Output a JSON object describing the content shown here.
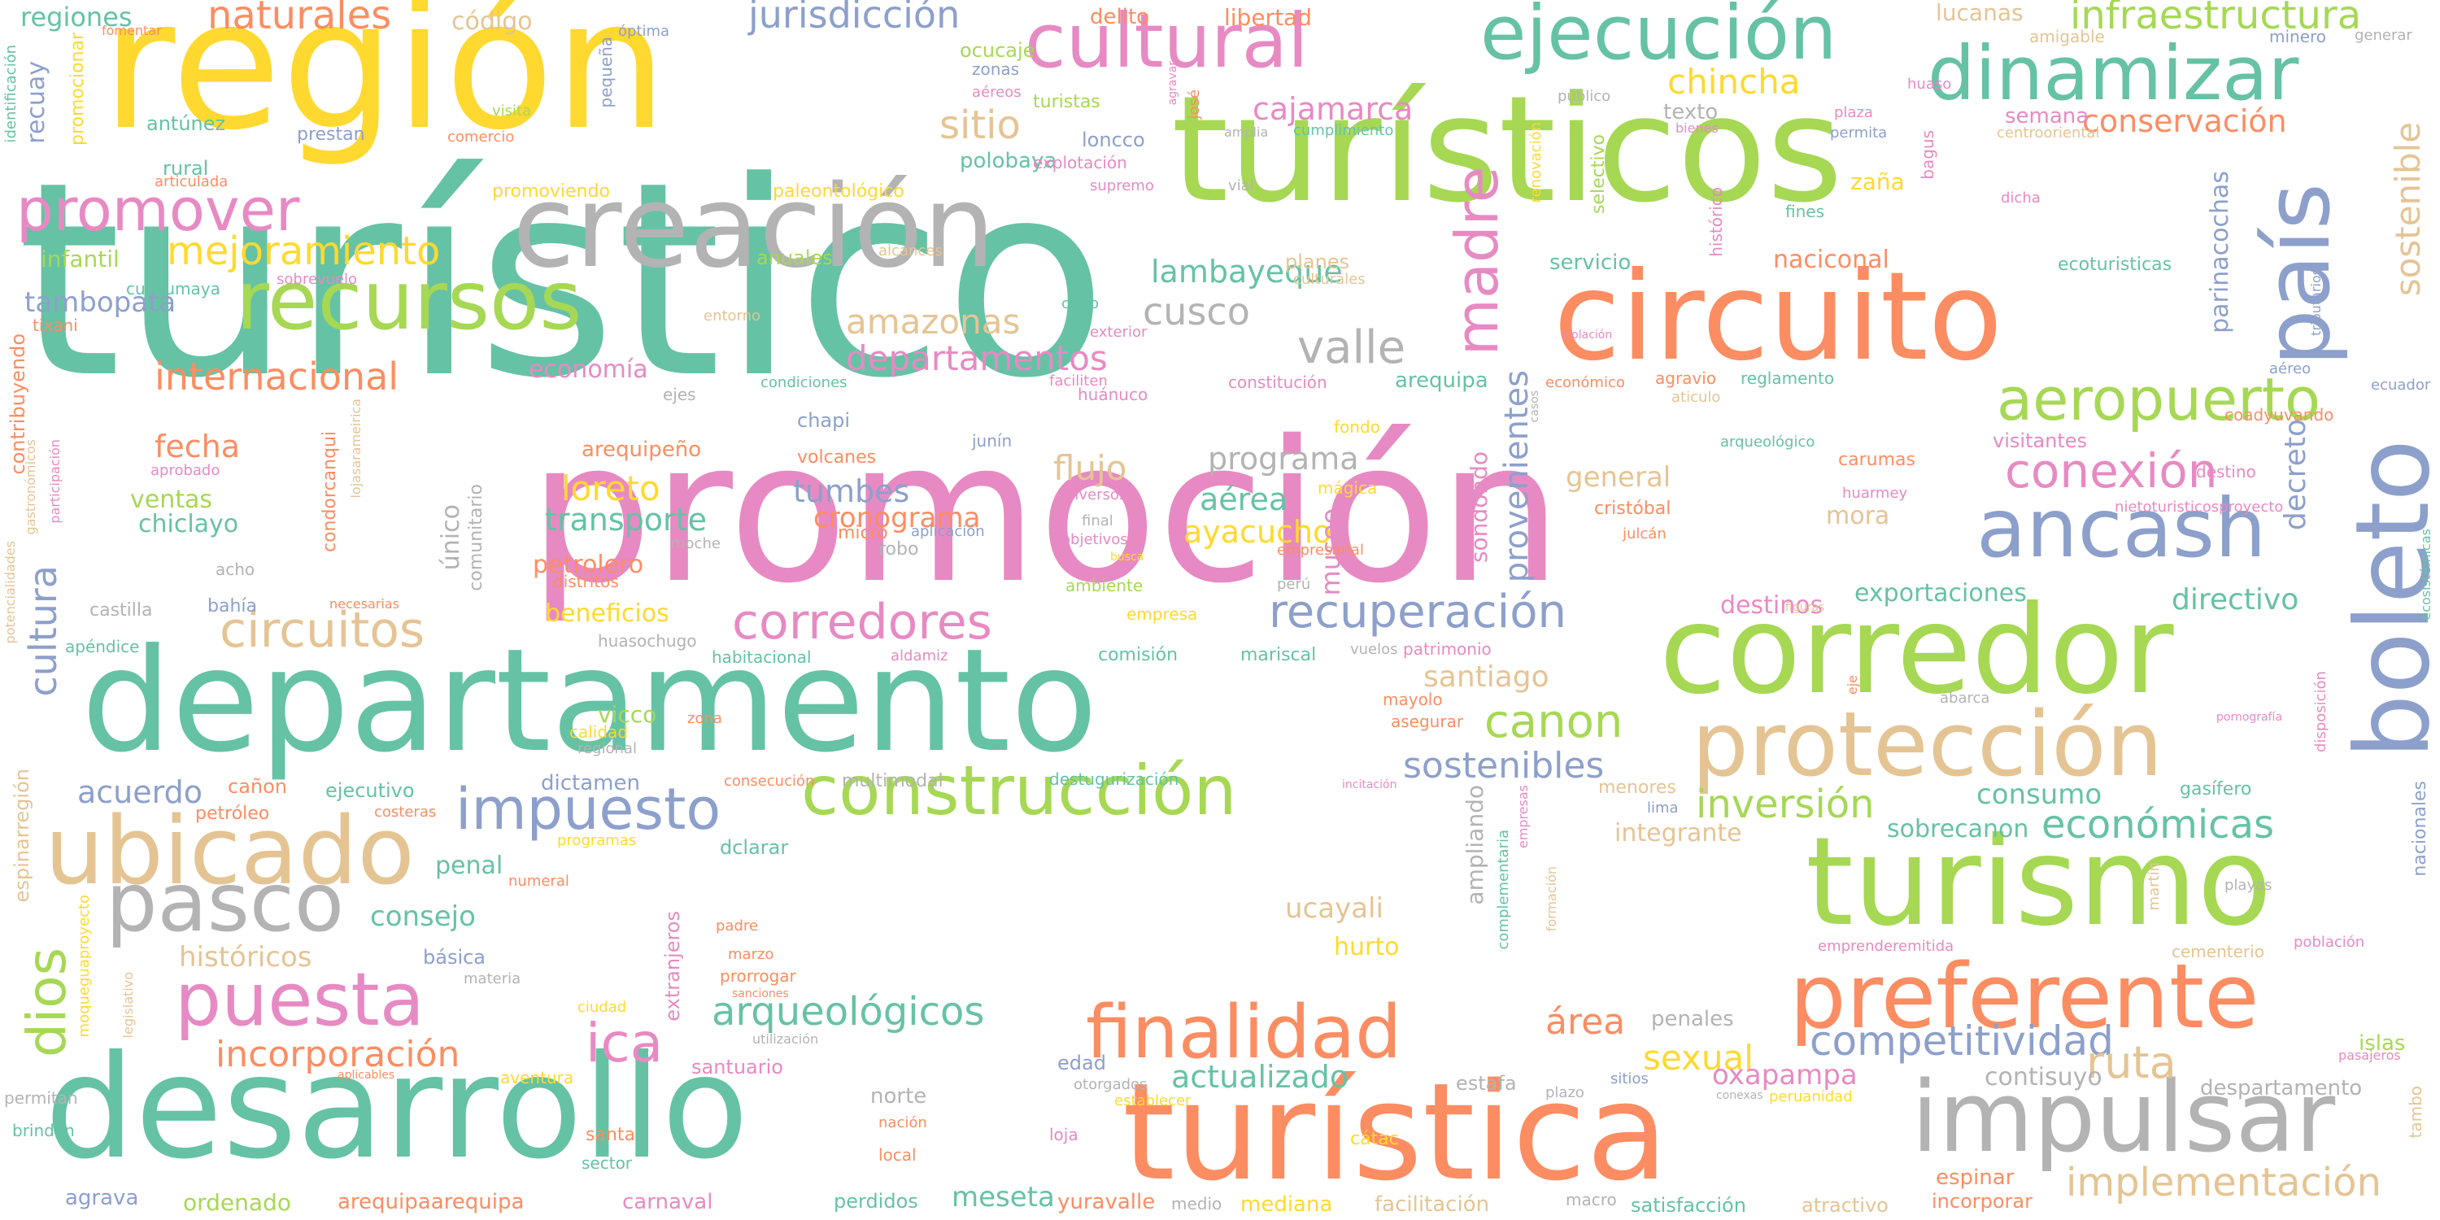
{
  "colors": {
    "teal": "#66c2a5",
    "orange": "#fc8d62",
    "blue": "#8da0cb",
    "pink": "#e78ac3",
    "lime": "#a6d854",
    "yellow": "#ffd92f",
    "tan": "#e5c494",
    "gray": "#b3b3b3"
  },
  "words": {
    "turistico": "turístico",
    "promocion": "promoción",
    "region": "región",
    "turisticos": "turísticos",
    "departamento": "departamento",
    "desarrollo": "desarrollo",
    "turistica": "turística",
    "creacion": "creación",
    "circuito": "circuito",
    "corredor": "corredor",
    "turismo": "turismo",
    "preferente": "preferente",
    "impulsar": "impulsar",
    "boleto": "boleto",
    "pais": "país",
    "proteccion": "protección",
    "ancash": "ancash",
    "ubicado": "ubicado",
    "pasco": "pasco",
    "cultural": "cultural",
    "ejecucion": "ejecución",
    "dinamizar": "dinamizar",
    "recursos": "recursos",
    "construccion": "construcción",
    "finalidad": "finalidad",
    "puesta": "puesta",
    "promover": "promover",
    "aeropuerto": "aeropuerto",
    "impuesto": "impuesto",
    "madre": "madre",
    "circuitos": "circuitos",
    "corredores": "corredores",
    "conexion": "conexión",
    "recuperacion": "recuperación",
    "competitividad": "competitividad",
    "implementacion": "implementación",
    "naturales": "naturales",
    "jurisdiccion": "jurisdicción",
    "infraestructura": "infraestructura",
    "mejoramiento": "mejoramiento",
    "internacional": "internacional",
    "arqueologicos": "arqueológicos",
    "incorporacion": "incorporación",
    "actualizado": "actualizado",
    "canon": "canon",
    "inversion": "inversión",
    "economicas": "económicas",
    "ruta": "ruta",
    "sexual": "sexual",
    "oxapampa": "oxapampa",
    "ica": "ica",
    "dios": "dios",
    "cultura": "cultura",
    "sostenibles": "sostenibles",
    "valle": "valle",
    "cusco": "cusco",
    "amazonas": "amazonas",
    "departamentos": "departamentos",
    "sitio": "sitio",
    "chincha": "chincha",
    "lambayeque": "lambayeque",
    "cajamarca": "cajamarca",
    "loreto": "loreto",
    "tumbes": "tumbes",
    "transporte": "transporte",
    "programa": "programa",
    "flujo": "flujo",
    "aerea": "aérea",
    "ayacucho": "ayacucho",
    "fecha": "fecha",
    "ventas": "ventas",
    "chiclayo": "chiclayo",
    "tambopata": "tambopata",
    "cronograma": "cronograma",
    "santiago": "santiago",
    "beneficios": "beneficios",
    "petrolero": "petrolero",
    "acuerdo": "acuerdo",
    "consejo": "consejo",
    "historicos": "históricos",
    "museo": "museo",
    "provenientes": "provenientes",
    "sostenible": "sostenible",
    "decreto": "decreto",
    "parinacochas": "parinacochas",
    "directivo": "directivo",
    "exportaciones": "exportaciones",
    "destinos": "destinos",
    "conservacion": "conservación",
    "naciconal": "naciconal",
    "general": "general",
    "mora": "mora",
    "consumo": "consumo",
    "sobrecanon": "sobrecanon",
    "integrante": "integrante",
    "arequipa": "arequipa",
    "economia": "economía",
    "ucayali": "ucayali",
    "hurto": "hurto",
    "area": "área",
    "penales": "penales",
    "contisuyo": "contisuyo",
    "despartamento": "despartamento",
    "islas": "islas",
    "espinar": "espinar",
    "incorporar": "incorporar",
    "satisfaccion": "satisfacción",
    "atractivo": "atractivo",
    "mediana": "mediana",
    "meseta": "meseta",
    "yuravalle": "yuravalle",
    "facilitacion": "facilitación",
    "carnaval": "carnaval",
    "arequipaarequipa": "arequipaarequipa",
    "ordenado": "ordenado",
    "agrava": "agrava",
    "perdidos": "perdidos",
    "santuario": "santuario",
    "edad": "edad",
    "norte": "norte",
    "estafa": "estafa",
    "extranjeros": "extranjeros",
    "penal": "penal",
    "basica": "básica",
    "vicco": "vicco",
    "calidad": "calidad",
    "regional": "regional",
    "canon2": "cañon",
    "ejecutivo": "ejecutivo",
    "petroleo": "petróleo",
    "dictamen": "dictamen",
    "multimodal": "multimodal",
    "destugurizacion": "destugurización",
    "regiones": "regiones",
    "codigo": "código",
    "lucanas": "lucanas",
    "delito": "delito",
    "libertad": "libertad",
    "recuay": "recuay",
    "antunez": "antúnez",
    "prestan": "prestan",
    "rural": "rural",
    "infantil": "infantil",
    "paleontologico": "paleontológico",
    "promoviendo": "promoviendo",
    "polobaya": "polobaya",
    "loncco": "loncco",
    "ocucaje": "ocucaje",
    "turistas": "turistas",
    "texto": "texto",
    "semana": "semana",
    "zana": "zaña",
    "servicio": "servicio",
    "ecoturisticas": "ecoturisticas",
    "cuchumaya": "cuchumaya",
    "tixani": "tixani",
    "acho": "acho",
    "castilla": "castilla",
    "bahia": "bahía",
    "apendice": "apéndice",
    "habitacional": "habitacional",
    "aldamiz": "aldamiz",
    "comision": "comisión",
    "mariscal": "mariscal",
    "mayolo": "mayolo",
    "asegurar": "asegurar",
    "arqueologico": "arqueológico",
    "carumas": "carumas",
    "cristobal": "cristóbal",
    "huarmey": "huarmey",
    "julcan": "julcán",
    "visitantes": "visitantes",
    "destino": "destino",
    "chapi": "chapi",
    "volcanes": "volcanes",
    "micro": "micro",
    "robo": "robo",
    "arequipeno": "arequipeño",
    "unico": "único",
    "comunitario": "comunitario",
    "distritos": "distritos",
    "huasochugo": "huasochugo",
    "empresa": "empresa",
    "ambiente": "ambiente",
    "aplicacion": "aplicación",
    "moche": "moche",
    "junin": "junín",
    "huanuco": "huánuco",
    "fondo": "fondo",
    "magica": "mágica",
    "empresarial": "empresarial",
    "peru": "perú",
    "vuelos": "vuelos",
    "patrimonio": "patrimonio",
    "sondondo": "sondondo",
    "agravio": "agravio",
    "reglamento": "reglamento",
    "economico": "económico",
    "constitucion": "constitución",
    "fomentar": "fomentar",
    "optima": "óptima",
    "pequena": "pequeña",
    "zonas": "zonas",
    "aereos": "aéreos",
    "publico": "público",
    "amigable": "amigable",
    "minero": "minero",
    "generar": "generar",
    "huaso": "huaso",
    "plaza": "plaza",
    "permita": "permita",
    "centrooriental": "centrooriental",
    "bagus": "bagus",
    "dicha": "dicha",
    "fines": "fines",
    "historico": "histórico",
    "selectivo": "selectivo",
    "renovacion": "renovación",
    "vial": "vial",
    "supremo": "supremo",
    "explotacion": "explotación",
    "alcances": "alcances",
    "sobrevuelo": "sobrevuelo",
    "entorno": "entorno",
    "cerro": "cerro",
    "exterior": "exterior",
    "planes": "planes",
    "culturales": "culturales",
    "anuales": "anuales",
    "condiciones": "condiciones",
    "ejes": "ejes",
    "faciliten": "faciliten",
    "violacion": "violación",
    "aereo": "aéreo",
    "ecuador": "ecuador",
    "coadyuvando": "coadyuvando",
    "tributarios": "tributarios",
    "aticulo": "aticulo",
    "nietoturisticosproyecto": "nietoturisticosproyecto",
    "ecosistemicas": "ecosistémicas",
    "disposicion": "disposición",
    "nacionales": "nacionales",
    "pornografia": "pornografía",
    "abarca": "abarca",
    "gasifero": "gasífero",
    "lima": "lima",
    "menores": "menores",
    "playas": "playas",
    "martin": "martín",
    "poblacion": "población",
    "cementerio": "cementerio",
    "emprenderemitida": "emprenderemitida",
    "pasajeros": "pasajeros",
    "tambo": "tambo",
    "formacion": "formación",
    "complementaria": "complementaria",
    "empresas": "empresas",
    "ampliando": "ampliando",
    "plazo": "plazo",
    "sitios": "sitios",
    "peruanidad": "peruanidad",
    "conexas": "conexas",
    "otorgados": "otorgados",
    "establecer": "establecer",
    "final": "final",
    "objetivos": "objetivos",
    "diversos": "diversos",
    "busca": "busca",
    "cactac": "cátac",
    "macro": "macro",
    "medio": "medio",
    "loja": "loja",
    "local": "local",
    "nacion": "nación",
    "sector": "sector",
    "santa": "santa",
    "aventura": "aventura",
    "utilizacion": "utilización",
    "sanciones": "sanciones",
    "prorrogar": "prorrogar",
    "marzo": "marzo",
    "padre": "padre",
    "consecucion": "consecución",
    "incitacion": "incitación",
    "zona": "zona",
    "costeras": "costeras",
    "programas": "programas",
    "numeral": "numeral",
    "dclarar": "dclarar",
    "materia": "materia",
    "ciudad": "ciudad",
    "aplicables": "aplicables",
    "brinden": "brinden",
    "permitan": "permitan",
    "moqueguaproyecto": "moqueguaproyecto",
    "legislativo": "legislativo",
    "espinarregion": "espinarregión",
    "potencialidades": "potencialidades",
    "gastronomicos": "gastronómicos",
    "participacion": "participación",
    "contribuyendo": "contribuyendo",
    "aprobado": "aprobado",
    "condorcanqui": "condorcanqui",
    "lojasarameirica": "lojasarameirica",
    "necesarias": "necesarias",
    "identificacion": "identificación",
    "promocionar": "promocionar",
    "articulada": "articulada",
    "visita": "visita",
    "comercio": "comercio",
    "amplia": "amplia",
    "cumplimiento": "cumplimiento",
    "jose": "josé",
    "agravar": "agravar",
    "bienes": "bienes",
    "figuras": "figuras",
    "eje": "eje",
    "casos": "casos",
    "culturales2": "culturales"
  }
}
